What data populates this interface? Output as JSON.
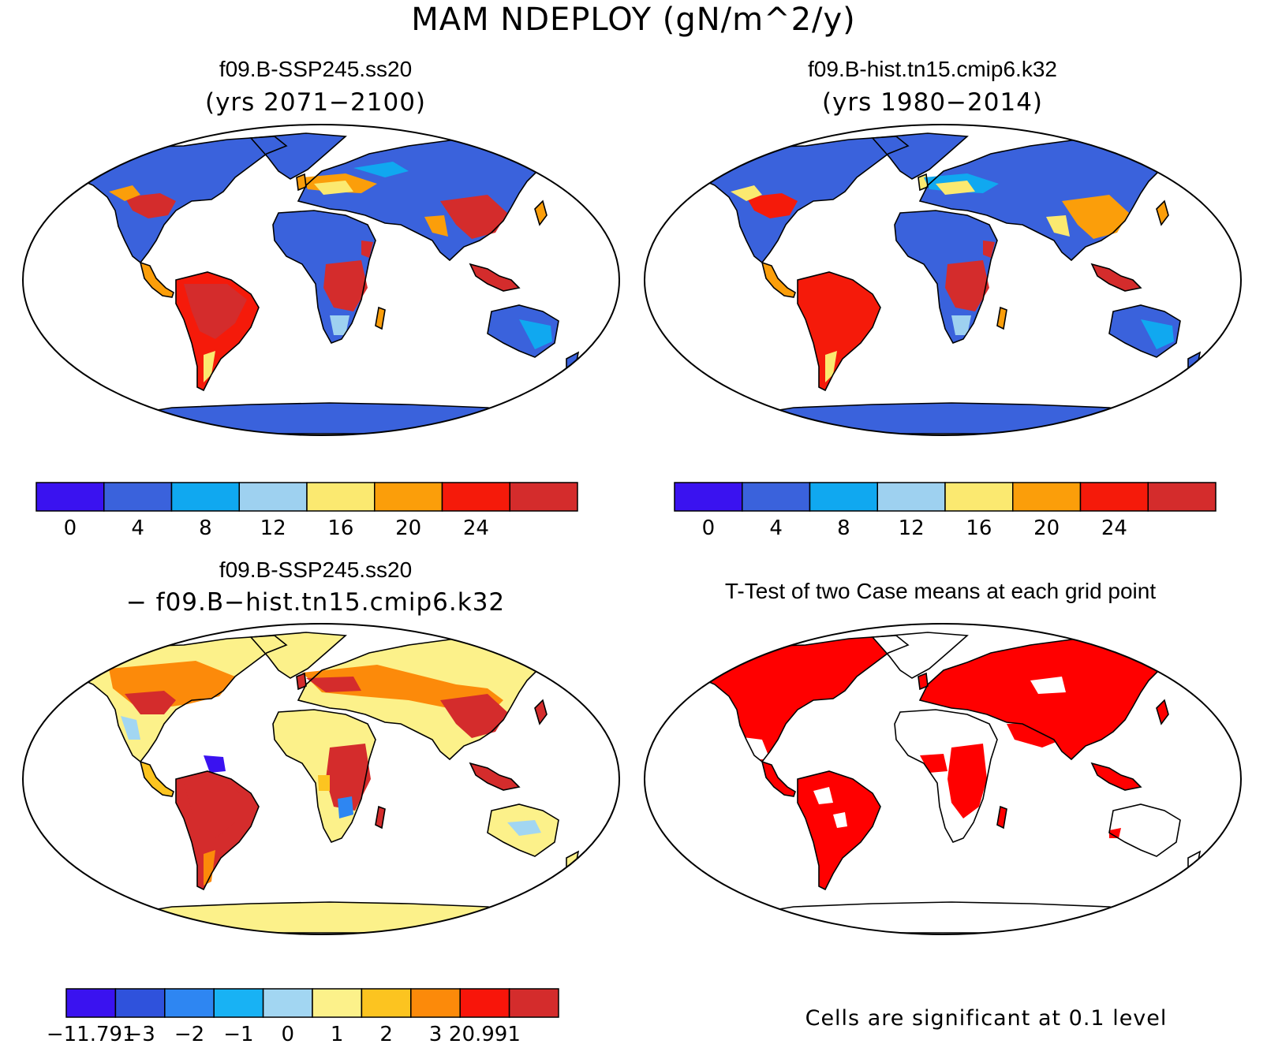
{
  "figure_title": "MAM NDEPLOY (gN/m^2/y)",
  "panels": [
    {
      "id": "tl",
      "title": "f09.B-SSP245.ss20",
      "subtitle": "(yrs 2071−2100)",
      "fill_scheme": "abs"
    },
    {
      "id": "tr",
      "title": "f09.B-hist.tn15.cmip6.k32",
      "subtitle": "(yrs 1980−2014)",
      "fill_scheme": "abs_hist"
    },
    {
      "id": "bl",
      "title": "f09.B-SSP245.ss20",
      "subtitle": "− f09.B−hist.tn15.cmip6.k32",
      "fill_scheme": "diff"
    },
    {
      "id": "br",
      "title": "T-Test of two Case means at each grid point",
      "subtitle": "",
      "fill_scheme": "ttest"
    }
  ],
  "colorbars": {
    "abs": {
      "colors": [
        "#3a12f0",
        "#3a62dc",
        "#10a8f0",
        "#9ed1f0",
        "#fbe970",
        "#fb9e0a",
        "#f51a0a",
        "#d42c2c"
      ],
      "labels": [
        "0",
        "4",
        "8",
        "12",
        "16",
        "20",
        "24"
      ]
    },
    "diff": {
      "colors": [
        "#3a12f0",
        "#2f52dc",
        "#2e86f2",
        "#18b2f4",
        "#a2d6f2",
        "#fcf18a",
        "#fcc420",
        "#fc8a0a",
        "#f8150a",
        "#d42c2c"
      ],
      "labels": [
        "−11.791",
        "−3",
        "−2",
        "−1",
        "0",
        "1",
        "2",
        "3",
        "20.991"
      ]
    }
  },
  "ttest_note": "Cells are significant at 0.1 level",
  "colors": {
    "ocean": "#ffffff",
    "coast": "#000000",
    "ttest_significant": "#ff0000"
  }
}
